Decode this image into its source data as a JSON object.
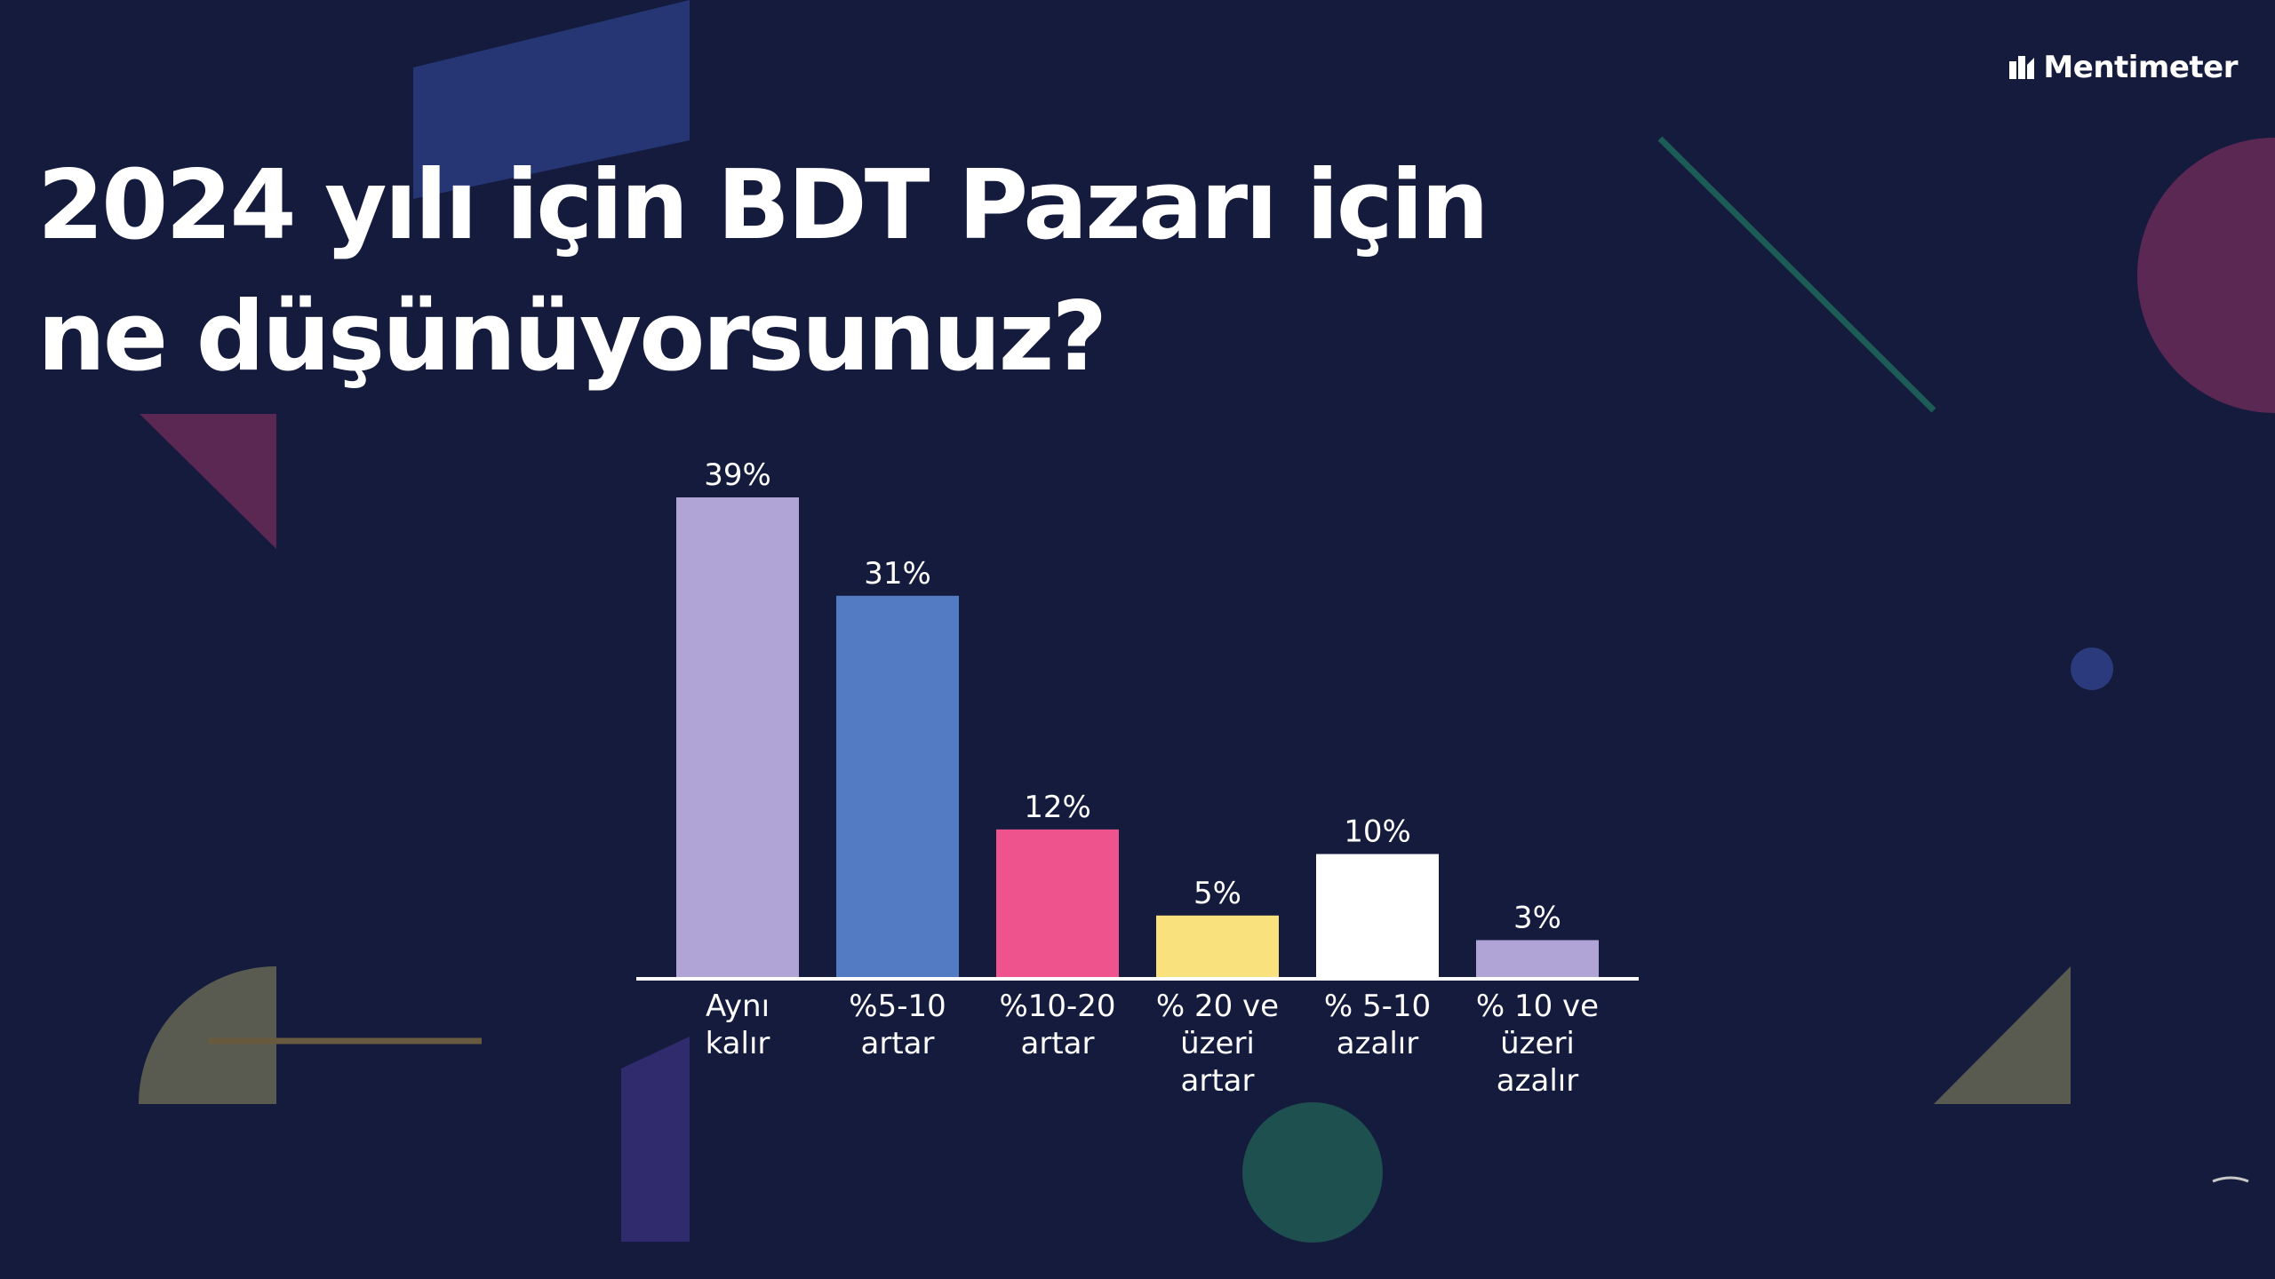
{
  "brand": {
    "name": "Mentimeter",
    "icon": "mentimeter-logo-icon"
  },
  "slide": {
    "title": "2024 yılı için BDT Pazarı için ne düşünüyorsunuz?"
  },
  "colors": {
    "background": "#141b3d",
    "lavender": "#b0a3d5",
    "blue": "#537bc4",
    "pink": "#ee538e",
    "yellow": "#f9e27d",
    "white": "#ffffff",
    "teal": "#1f5d5a"
  },
  "chart_data": {
    "type": "bar",
    "categories": [
      [
        "Aynı",
        "kalır"
      ],
      [
        "%5-10",
        "artar"
      ],
      [
        "%10-20",
        "artar"
      ],
      [
        "% 20 ve",
        "üzeri",
        "artar"
      ],
      [
        "% 5-10",
        "azalır"
      ],
      [
        "% 10 ve",
        "üzeri",
        "azalır"
      ]
    ],
    "values": [
      39,
      31,
      12,
      5,
      10,
      3
    ],
    "value_labels": [
      "39%",
      "31%",
      "12%",
      "5%",
      "10%",
      "3%"
    ],
    "bar_colors": [
      "#b0a3d5",
      "#537bc4",
      "#ee538e",
      "#f9e27d",
      "#ffffff",
      "#b0a3d5"
    ],
    "unit": "%",
    "ylim": [
      0,
      39
    ],
    "grid": false,
    "legend": "none"
  }
}
